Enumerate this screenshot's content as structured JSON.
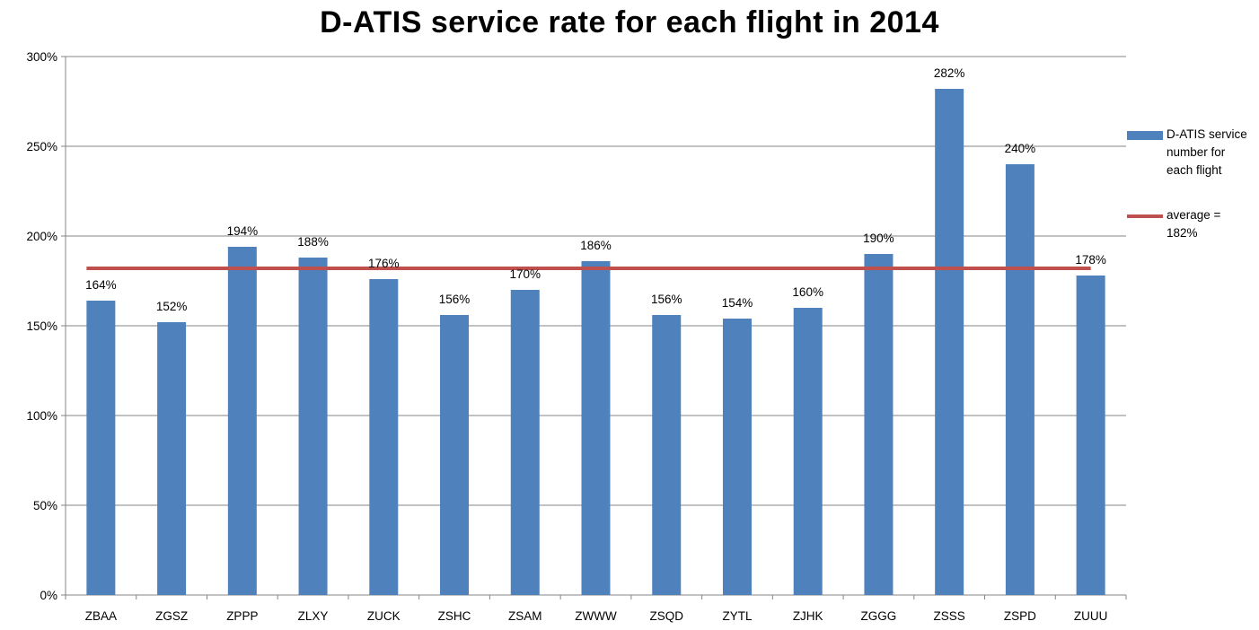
{
  "title": "D-ATIS service rate for each flight in 2014",
  "legend": {
    "bar_label": "D-ATIS service number for each flight",
    "line_label": "average = 182%"
  },
  "colors": {
    "bar": "#4f81bd",
    "average_line": "#c0504d",
    "grid": "#868686",
    "axis": "#868686",
    "text": "#000000"
  },
  "chart_data": {
    "type": "bar",
    "title": "D-ATIS service rate for each flight in 2014",
    "xlabel": "",
    "ylabel": "",
    "categories": [
      "ZBAA",
      "ZGSZ",
      "ZPPP",
      "ZLXY",
      "ZUCK",
      "ZSHC",
      "ZSAM",
      "ZWWW",
      "ZSQD",
      "ZYTL",
      "ZJHK",
      "ZGGG",
      "ZSSS",
      "ZSPD",
      "ZUUU"
    ],
    "series": [
      {
        "name": "D-ATIS service number for each flight",
        "values": [
          164,
          152,
          194,
          188,
          176,
          156,
          170,
          186,
          156,
          154,
          160,
          190,
          282,
          240,
          178
        ],
        "labels": [
          "164%",
          "152%",
          "194%",
          "188%",
          "176%",
          "156%",
          "170%",
          "186%",
          "156%",
          "154%",
          "160%",
          "190%",
          "282%",
          "240%",
          "178%"
        ]
      }
    ],
    "average": {
      "name": "average = 182%",
      "value": 182
    },
    "ylim": [
      0,
      300
    ],
    "yticks": [
      0,
      50,
      100,
      150,
      200,
      250,
      300
    ],
    "ytick_labels": [
      "0%",
      "50%",
      "100%",
      "150%",
      "200%",
      "250%",
      "300%"
    ],
    "grid": true,
    "legend_position": "right"
  }
}
